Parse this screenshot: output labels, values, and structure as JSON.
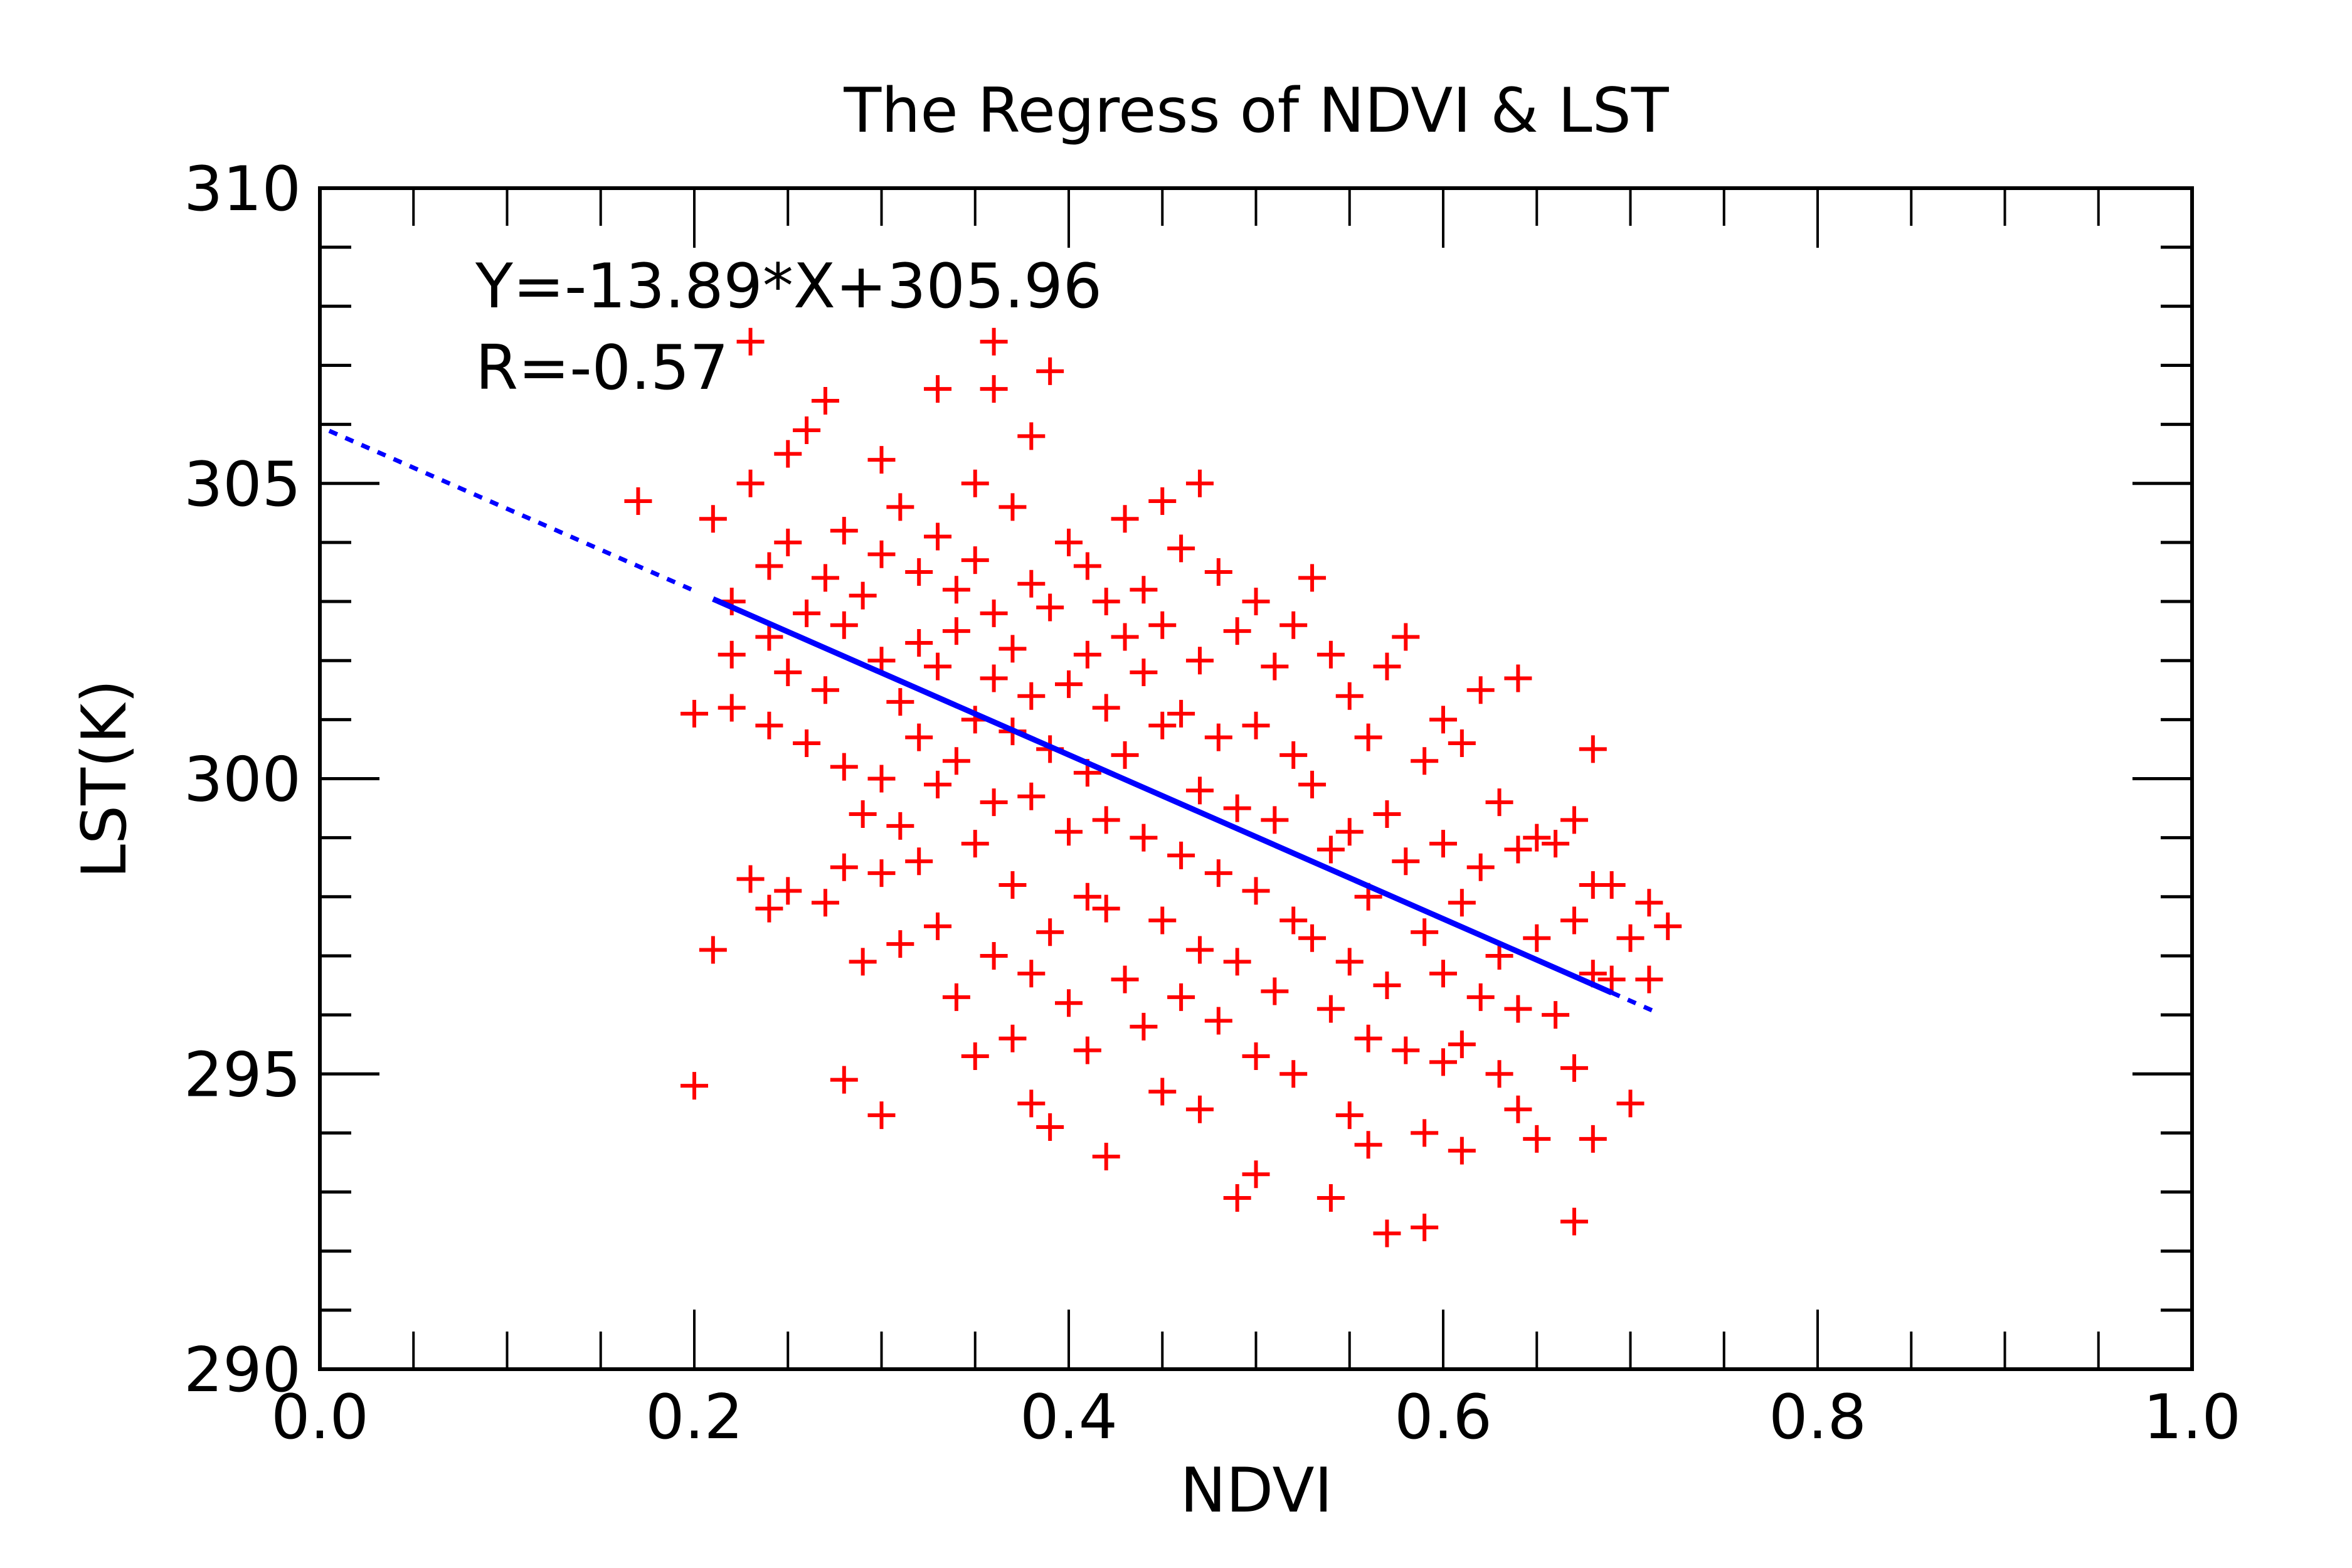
{
  "chart_data": {
    "type": "scatter",
    "title": "The Regress of NDVI & LST",
    "xlabel": "NDVI",
    "ylabel": "LST(K)",
    "xlim": [
      0.0,
      1.0
    ],
    "ylim": [
      290,
      310
    ],
    "xticks": [
      "0.0",
      "0.2",
      "0.4",
      "0.6",
      "0.8",
      "1.0"
    ],
    "yticks": [
      "290",
      "295",
      "300",
      "305",
      "310"
    ],
    "grid": false,
    "annotations": {
      "equation": "Y=-13.89*X+305.96",
      "r": "R=-0.57"
    },
    "regression": {
      "slope": -13.89,
      "intercept": 305.96,
      "solid_range": [
        0.21,
        0.69
      ],
      "dashed_ranges": [
        [
          0.005,
          0.2
        ],
        [
          0.69,
          0.715
        ]
      ],
      "color": "#0000ff"
    },
    "series": [
      {
        "name": "samples",
        "marker": "+",
        "color": "#ff0000",
        "points": [
          [
            0.17,
            304.7
          ],
          [
            0.2,
            294.8
          ],
          [
            0.2,
            301.1
          ],
          [
            0.21,
            297.1
          ],
          [
            0.21,
            304.4
          ],
          [
            0.22,
            303.0
          ],
          [
            0.22,
            302.1
          ],
          [
            0.22,
            301.2
          ],
          [
            0.23,
            307.4
          ],
          [
            0.23,
            298.3
          ],
          [
            0.23,
            305.0
          ],
          [
            0.24,
            303.6
          ],
          [
            0.24,
            302.4
          ],
          [
            0.24,
            300.9
          ],
          [
            0.24,
            297.8
          ],
          [
            0.25,
            305.5
          ],
          [
            0.25,
            304.0
          ],
          [
            0.25,
            301.8
          ],
          [
            0.25,
            298.1
          ],
          [
            0.26,
            305.9
          ],
          [
            0.26,
            302.8
          ],
          [
            0.26,
            300.6
          ],
          [
            0.27,
            306.4
          ],
          [
            0.27,
            303.4
          ],
          [
            0.27,
            301.5
          ],
          [
            0.27,
            297.9
          ],
          [
            0.28,
            294.9
          ],
          [
            0.28,
            304.2
          ],
          [
            0.28,
            302.6
          ],
          [
            0.28,
            300.2
          ],
          [
            0.28,
            298.5
          ],
          [
            0.29,
            303.1
          ],
          [
            0.29,
            299.4
          ],
          [
            0.29,
            296.9
          ],
          [
            0.3,
            294.3
          ],
          [
            0.3,
            305.4
          ],
          [
            0.3,
            303.8
          ],
          [
            0.3,
            302.0
          ],
          [
            0.3,
            300.0
          ],
          [
            0.3,
            298.4
          ],
          [
            0.31,
            304.6
          ],
          [
            0.31,
            301.3
          ],
          [
            0.31,
            299.2
          ],
          [
            0.31,
            297.2
          ],
          [
            0.32,
            303.5
          ],
          [
            0.32,
            302.3
          ],
          [
            0.32,
            300.7
          ],
          [
            0.32,
            298.6
          ],
          [
            0.33,
            306.6
          ],
          [
            0.33,
            304.1
          ],
          [
            0.33,
            301.9
          ],
          [
            0.33,
            299.9
          ],
          [
            0.33,
            297.5
          ],
          [
            0.34,
            303.2
          ],
          [
            0.34,
            302.5
          ],
          [
            0.34,
            300.3
          ],
          [
            0.34,
            296.3
          ],
          [
            0.35,
            305.0
          ],
          [
            0.35,
            303.7
          ],
          [
            0.35,
            301.0
          ],
          [
            0.35,
            298.9
          ],
          [
            0.35,
            295.3
          ],
          [
            0.36,
            307.4
          ],
          [
            0.36,
            306.6
          ],
          [
            0.36,
            302.8
          ],
          [
            0.36,
            301.7
          ],
          [
            0.36,
            299.6
          ],
          [
            0.36,
            297.0
          ],
          [
            0.37,
            304.6
          ],
          [
            0.37,
            302.2
          ],
          [
            0.37,
            300.8
          ],
          [
            0.37,
            298.2
          ],
          [
            0.37,
            295.6
          ],
          [
            0.38,
            305.8
          ],
          [
            0.38,
            303.3
          ],
          [
            0.38,
            301.4
          ],
          [
            0.38,
            299.7
          ],
          [
            0.38,
            296.7
          ],
          [
            0.38,
            294.5
          ],
          [
            0.39,
            306.9
          ],
          [
            0.39,
            302.9
          ],
          [
            0.39,
            300.5
          ],
          [
            0.39,
            297.4
          ],
          [
            0.39,
            294.1
          ],
          [
            0.4,
            304.0
          ],
          [
            0.4,
            301.6
          ],
          [
            0.4,
            299.1
          ],
          [
            0.4,
            296.2
          ],
          [
            0.41,
            303.6
          ],
          [
            0.41,
            302.1
          ],
          [
            0.41,
            300.1
          ],
          [
            0.41,
            298.0
          ],
          [
            0.41,
            295.4
          ],
          [
            0.42,
            293.6
          ],
          [
            0.42,
            303.0
          ],
          [
            0.42,
            301.2
          ],
          [
            0.42,
            299.3
          ],
          [
            0.42,
            297.8
          ],
          [
            0.43,
            304.4
          ],
          [
            0.43,
            302.4
          ],
          [
            0.43,
            300.4
          ],
          [
            0.43,
            296.6
          ],
          [
            0.44,
            303.2
          ],
          [
            0.44,
            301.8
          ],
          [
            0.44,
            299.0
          ],
          [
            0.44,
            295.8
          ],
          [
            0.45,
            304.7
          ],
          [
            0.45,
            302.6
          ],
          [
            0.45,
            300.9
          ],
          [
            0.45,
            297.6
          ],
          [
            0.45,
            294.7
          ],
          [
            0.46,
            303.9
          ],
          [
            0.46,
            301.1
          ],
          [
            0.46,
            298.7
          ],
          [
            0.46,
            296.3
          ],
          [
            0.47,
            305.0
          ],
          [
            0.47,
            302.0
          ],
          [
            0.47,
            299.8
          ],
          [
            0.47,
            297.1
          ],
          [
            0.47,
            294.4
          ],
          [
            0.48,
            303.5
          ],
          [
            0.48,
            300.7
          ],
          [
            0.48,
            298.4
          ],
          [
            0.48,
            295.9
          ],
          [
            0.49,
            292.9
          ],
          [
            0.49,
            302.5
          ],
          [
            0.49,
            299.5
          ],
          [
            0.49,
            296.9
          ],
          [
            0.5,
            293.3
          ],
          [
            0.5,
            303.0
          ],
          [
            0.5,
            300.9
          ],
          [
            0.5,
            298.1
          ],
          [
            0.5,
            295.3
          ],
          [
            0.51,
            301.9
          ],
          [
            0.51,
            299.3
          ],
          [
            0.51,
            296.4
          ],
          [
            0.52,
            302.6
          ],
          [
            0.52,
            300.4
          ],
          [
            0.52,
            297.6
          ],
          [
            0.52,
            295.0
          ],
          [
            0.53,
            303.4
          ],
          [
            0.53,
            299.9
          ],
          [
            0.53,
            297.3
          ],
          [
            0.54,
            292.9
          ],
          [
            0.54,
            302.1
          ],
          [
            0.54,
            298.8
          ],
          [
            0.54,
            296.1
          ],
          [
            0.55,
            301.4
          ],
          [
            0.55,
            299.1
          ],
          [
            0.55,
            296.9
          ],
          [
            0.55,
            294.3
          ],
          [
            0.56,
            300.7
          ],
          [
            0.56,
            298.0
          ],
          [
            0.56,
            295.6
          ],
          [
            0.56,
            293.8
          ],
          [
            0.57,
            292.3
          ],
          [
            0.57,
            301.9
          ],
          [
            0.57,
            299.4
          ],
          [
            0.57,
            296.5
          ],
          [
            0.58,
            302.4
          ],
          [
            0.58,
            298.6
          ],
          [
            0.58,
            295.4
          ],
          [
            0.59,
            292.4
          ],
          [
            0.59,
            300.3
          ],
          [
            0.59,
            297.4
          ],
          [
            0.59,
            294.0
          ],
          [
            0.6,
            301.0
          ],
          [
            0.6,
            298.9
          ],
          [
            0.6,
            296.7
          ],
          [
            0.6,
            295.2
          ],
          [
            0.61,
            293.7
          ],
          [
            0.61,
            300.6
          ],
          [
            0.61,
            297.9
          ],
          [
            0.61,
            295.5
          ],
          [
            0.62,
            301.5
          ],
          [
            0.62,
            298.5
          ],
          [
            0.62,
            296.3
          ],
          [
            0.63,
            299.6
          ],
          [
            0.63,
            297.0
          ],
          [
            0.63,
            295.0
          ],
          [
            0.64,
            301.7
          ],
          [
            0.64,
            298.8
          ],
          [
            0.64,
            296.1
          ],
          [
            0.64,
            294.4
          ],
          [
            0.65,
            299.0
          ],
          [
            0.65,
            297.3
          ],
          [
            0.65,
            293.9
          ],
          [
            0.66,
            298.9
          ],
          [
            0.66,
            296.0
          ],
          [
            0.67,
            292.5
          ],
          [
            0.67,
            299.3
          ],
          [
            0.67,
            297.6
          ],
          [
            0.67,
            295.1
          ],
          [
            0.68,
            300.5
          ],
          [
            0.68,
            298.2
          ],
          [
            0.68,
            296.7
          ],
          [
            0.68,
            293.9
          ],
          [
            0.69,
            298.2
          ],
          [
            0.69,
            296.6
          ],
          [
            0.7,
            297.3
          ],
          [
            0.7,
            294.5
          ],
          [
            0.71,
            297.9
          ],
          [
            0.71,
            296.6
          ],
          [
            0.72,
            297.5
          ]
        ]
      }
    ]
  }
}
